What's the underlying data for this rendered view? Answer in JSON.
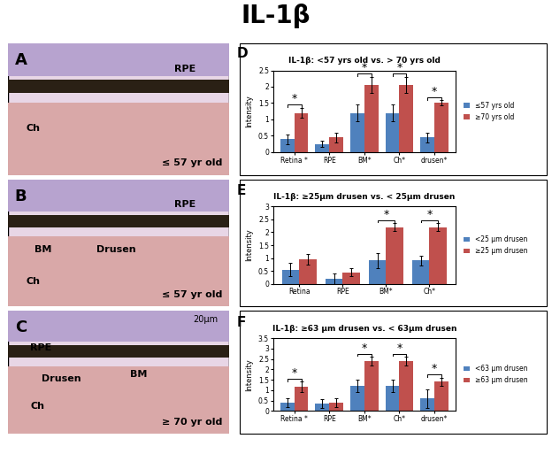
{
  "title": "IL-1β",
  "images": [
    {
      "panel": "A",
      "labels": [
        "RPE",
        "Ch"
      ],
      "age": "≤ 57 yr old"
    },
    {
      "panel": "B",
      "labels": [
        "RPE",
        "BM",
        "Drusen",
        "Ch"
      ],
      "age": "≤ 57 yr old"
    },
    {
      "panel": "C",
      "labels": [
        "RPE",
        "Drusen",
        "BM",
        "Ch"
      ],
      "age": "≥ 70 yr old",
      "scale_bar": "20μm"
    }
  ],
  "chart_data": [
    {
      "type": "bar",
      "panel": "D",
      "title": "IL-1β: <57 yrs old vs. > 70 yrs old",
      "y_label": "Intensity",
      "categories": [
        "Retina *",
        "RPE",
        "BM*",
        "Ch*",
        "drusen*"
      ],
      "series": [
        {
          "name": "≤57 yrs old",
          "color": "#4f81bd",
          "values": [
            0.4,
            0.25,
            1.2,
            1.2,
            0.45
          ],
          "errors": [
            0.15,
            0.1,
            0.25,
            0.25,
            0.15
          ]
        },
        {
          "name": "≥70 yrs old",
          "color": "#c0504d",
          "values": [
            1.2,
            0.45,
            2.05,
            2.05,
            1.5
          ],
          "errors": [
            0.15,
            0.15,
            0.25,
            0.25,
            0.08
          ]
        }
      ],
      "significance": [
        "*",
        null,
        "*",
        "*",
        "*"
      ],
      "ylim": [
        0,
        2.5
      ],
      "yticks": [
        0,
        0.5,
        1,
        1.5,
        2,
        2.5
      ],
      "legend": "right"
    },
    {
      "type": "bar",
      "panel": "E",
      "title": "IL-1β: ≥25μm drusen vs. < 25μm drusen",
      "y_label": "Intensity",
      "categories": [
        "Retina",
        "RPE",
        "BM*",
        "Ch*"
      ],
      "series": [
        {
          "name": "<25 μm drusen",
          "color": "#4f81bd",
          "values": [
            0.55,
            0.2,
            0.9,
            0.9
          ],
          "errors": [
            0.25,
            0.2,
            0.3,
            0.2
          ]
        },
        {
          "name": "≥25 μm drusen",
          "color": "#c0504d",
          "values": [
            0.95,
            0.45,
            2.2,
            2.2
          ],
          "errors": [
            0.2,
            0.15,
            0.15,
            0.15
          ]
        }
      ],
      "significance": [
        null,
        null,
        "*",
        "*"
      ],
      "ylim": [
        0,
        3
      ],
      "yticks": [
        0,
        0.5,
        1,
        1.5,
        2,
        2.5,
        3
      ],
      "legend": "right"
    },
    {
      "type": "bar",
      "panel": "F",
      "title": "IL-1β: ≥63 μm drusen vs. < 63μm drusen",
      "y_label": "Intensity",
      "categories": [
        "Retina *",
        "RPE",
        "BM*",
        "Ch*",
        "drusen*"
      ],
      "series": [
        {
          "name": "<63 μm drusen",
          "color": "#4f81bd",
          "values": [
            0.4,
            0.35,
            1.2,
            1.2,
            0.6
          ],
          "errors": [
            0.2,
            0.2,
            0.3,
            0.3,
            0.45
          ]
        },
        {
          "name": "≥63 μm drusen",
          "color": "#c0504d",
          "values": [
            1.15,
            0.4,
            2.4,
            2.4,
            1.4
          ],
          "errors": [
            0.25,
            0.2,
            0.2,
            0.2,
            0.2
          ]
        }
      ],
      "significance": [
        "*",
        null,
        "*",
        "*",
        "*"
      ],
      "ylim": [
        0,
        3.5
      ],
      "yticks": [
        0,
        0.5,
        1,
        1.5,
        2,
        2.5,
        3,
        3.5
      ],
      "legend": "right"
    }
  ]
}
